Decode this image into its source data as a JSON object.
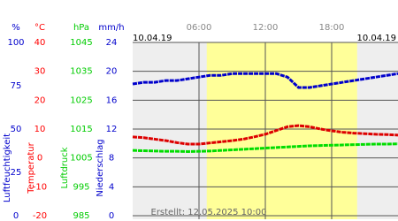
{
  "chart_data": {
    "type": "line",
    "date_left": "10.04.19",
    "date_right": "10.04.19",
    "created": "Erstellt: 12.05.2025 10:00",
    "xlim": [
      0,
      24
    ],
    "xticks": [
      {
        "value": 6,
        "label": "06:00"
      },
      {
        "value": 12,
        "label": "12:00"
      },
      {
        "value": 18,
        "label": "18:00"
      }
    ],
    "daylight": [
      6.7,
      20.3
    ],
    "grid": true,
    "axes": [
      {
        "unit": "%",
        "label": "Luftfeuchtigkeit",
        "color": "#0000cc",
        "ylim": [
          0,
          100
        ],
        "yticks": [
          0,
          25,
          50,
          75,
          100
        ]
      },
      {
        "unit": "°C",
        "label": "Temperatur",
        "color": "#ff0000",
        "ylim": [
          -20,
          40
        ],
        "yticks": [
          -20,
          -10,
          0,
          10,
          20,
          30,
          40
        ]
      },
      {
        "unit": "hPa",
        "label": "Luftdruck",
        "color": "#00cc00",
        "ylim": [
          985,
          1045
        ],
        "yticks": [
          985,
          995,
          1005,
          1015,
          1025,
          1035,
          1045
        ]
      },
      {
        "unit": "mm/h",
        "label": "Niederschlag",
        "color": "#0000cc",
        "ylim": [
          0,
          24
        ],
        "yticks": [
          0,
          4,
          8,
          12,
          16,
          20,
          24
        ]
      }
    ],
    "x": [
      0,
      1,
      2,
      3,
      4,
      5,
      6,
      7,
      8,
      9,
      10,
      11,
      12,
      13,
      14,
      15,
      16,
      17,
      18,
      19,
      20,
      21,
      22,
      23,
      24
    ],
    "series": [
      {
        "axis": 0,
        "color": "#0000cc",
        "values": [
          76,
          77,
          77,
          78,
          78,
          79,
          80,
          81,
          81,
          82,
          82,
          82,
          82,
          82,
          80,
          74,
          74,
          75,
          76,
          77,
          78,
          79,
          80,
          81,
          82
        ]
      },
      {
        "axis": 1,
        "color": "#dd0000",
        "values": [
          7.3,
          7.0,
          6.5,
          6.0,
          5.3,
          4.8,
          4.8,
          5.2,
          5.6,
          6.0,
          6.5,
          7.3,
          8.2,
          9.5,
          10.8,
          11.2,
          10.8,
          10.0,
          9.4,
          8.9,
          8.6,
          8.4,
          8.2,
          8.1,
          7.9
        ]
      },
      {
        "axis": 2,
        "color": "#00dd00",
        "values": [
          1007.6,
          1007.5,
          1007.4,
          1007.3,
          1007.3,
          1007.2,
          1007.3,
          1007.4,
          1007.6,
          1007.8,
          1008.0,
          1008.2,
          1008.4,
          1008.6,
          1008.8,
          1009.0,
          1009.2,
          1009.3,
          1009.4,
          1009.5,
          1009.6,
          1009.7,
          1009.8,
          1009.8,
          1009.9
        ]
      }
    ]
  }
}
